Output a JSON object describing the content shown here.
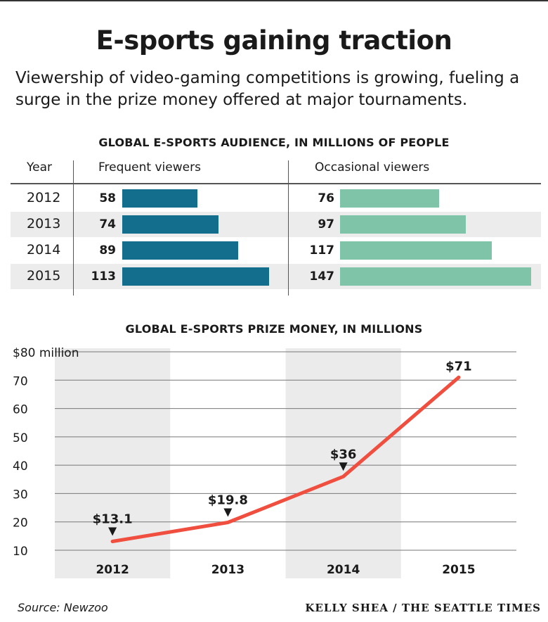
{
  "title": "E-sports gaining traction",
  "subtitle": "Viewership of video-gaming competitions is growing, fueling a surge in the prize money offered at major tournaments.",
  "audience_section_title": "GLOBAL E-SPORTS AUDIENCE, IN MILLIONS OF PEOPLE",
  "table": {
    "col_year": "Year",
    "col_frequent": "Frequent viewers",
    "col_occasional": "Occasional viewers",
    "rows": [
      {
        "year": "2012",
        "frequent": "58",
        "occasional": "76"
      },
      {
        "year": "2013",
        "frequent": "74",
        "occasional": "97"
      },
      {
        "year": "2014",
        "frequent": "89",
        "occasional": "117"
      },
      {
        "year": "2015",
        "frequent": "113",
        "occasional": "147"
      }
    ]
  },
  "prize_section_title": "GLOBAL E-SPORTS PRIZE MONEY, IN MILLIONS",
  "chart_data": [
    {
      "type": "bar",
      "orientation": "horizontal",
      "title": "GLOBAL E-SPORTS AUDIENCE, IN MILLIONS OF PEOPLE",
      "categories": [
        "2012",
        "2013",
        "2014",
        "2015"
      ],
      "series": [
        {
          "name": "Frequent viewers",
          "values": [
            58,
            74,
            89,
            113
          ],
          "color": "#126e8c"
        },
        {
          "name": "Occasional viewers",
          "values": [
            76,
            97,
            117,
            147
          ],
          "color": "#7fc4a8"
        }
      ]
    },
    {
      "type": "line",
      "title": "GLOBAL E-SPORTS PRIZE MONEY, IN MILLIONS",
      "x": [
        "2012",
        "2013",
        "2014",
        "2015"
      ],
      "series": [
        {
          "values": [
            13.1,
            19.8,
            36,
            71
          ],
          "color": "#f04e3e"
        }
      ],
      "data_labels": [
        "$13.1",
        "$19.8",
        "$36",
        "$71"
      ],
      "ylim": [
        10,
        80
      ],
      "yticks": [
        10,
        20,
        30,
        40,
        50,
        60,
        70,
        80
      ],
      "ytick_labels": [
        "10",
        "20",
        "30",
        "40",
        "50",
        "60",
        "70",
        "$80 million"
      ],
      "grid": true,
      "shaded_columns": [
        "2012",
        "2014"
      ]
    }
  ],
  "source": "Source: Newzoo",
  "credit": "KELLY SHEA / THE SEATTLE TIMES"
}
